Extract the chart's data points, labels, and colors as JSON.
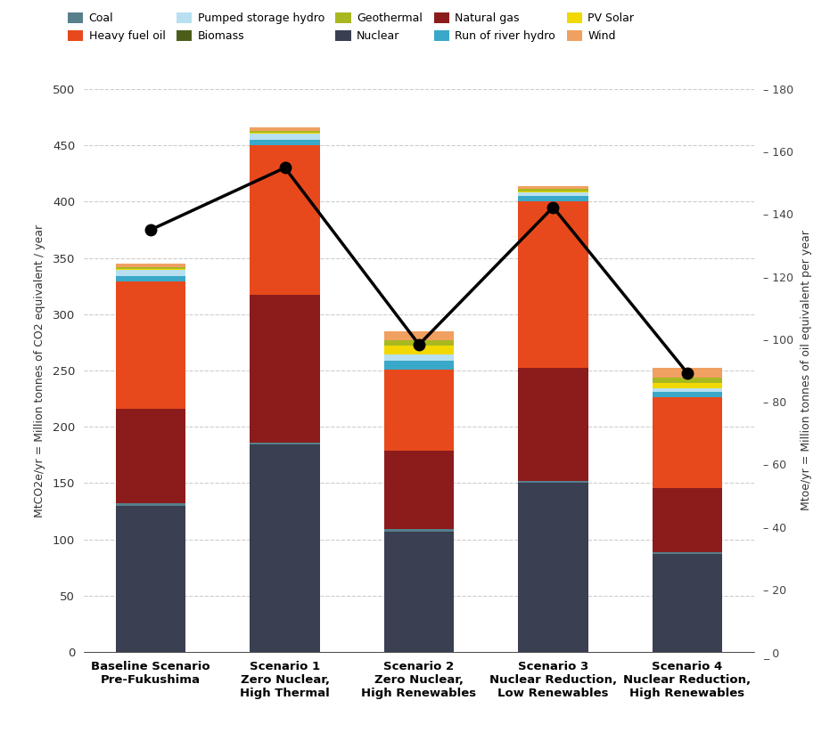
{
  "categories": [
    "Baseline Scenario\nPre-Fukushima",
    "Scenario 1\nZero Nuclear,\nHigh Thermal",
    "Scenario 2\nZero Nuclear,\nHigh Renewables",
    "Scenario 3\nNuclear Reduction,\nLow Renewables",
    "Scenario 4\nNuclear Reduction,\nHigh Renewables"
  ],
  "segment_order": [
    "Nuclear",
    "Coal",
    "Natural gas",
    "Heavy fuel oil",
    "Run of river hydro",
    "Pumped storage hydro",
    "PV Solar",
    "Geothermal",
    "Wind",
    "Biomass"
  ],
  "segments": {
    "Coal": {
      "color": "#577f8c",
      "values": [
        2,
        2,
        2,
        2,
        2
      ]
    },
    "Nuclear": {
      "color": "#3a3f52",
      "values": [
        130,
        184,
        107,
        150,
        87
      ]
    },
    "Heavy fuel oil": {
      "color": "#e8491c",
      "values": [
        113,
        133,
        72,
        148,
        80
      ]
    },
    "Natural gas": {
      "color": "#8c1c1c",
      "values": [
        84,
        131,
        70,
        100,
        57
      ]
    },
    "Pumped storage hydro": {
      "color": "#b8e0f0",
      "values": [
        5,
        5,
        5,
        3,
        3
      ]
    },
    "Run of river hydro": {
      "color": "#3aa8c8",
      "values": [
        5,
        5,
        8,
        5,
        5
      ]
    },
    "Biomass": {
      "color": "#4a5e1a",
      "values": [
        0,
        0,
        0,
        0,
        0
      ]
    },
    "PV Solar": {
      "color": "#f0d800",
      "values": [
        1,
        1,
        8,
        1,
        5
      ]
    },
    "Geothermal": {
      "color": "#a8b820",
      "values": [
        2,
        2,
        5,
        2,
        5
      ]
    },
    "Wind": {
      "color": "#f0a060",
      "values": [
        3,
        3,
        8,
        3,
        8
      ]
    }
  },
  "line_values": [
    375,
    430,
    273,
    395,
    248
  ],
  "ylim_left": [
    0,
    500
  ],
  "ylim_right": [
    0,
    180
  ],
  "ylabel_left": "MtCO2e/yr = Million tonnes of CO2 equivalent / year",
  "ylabel_right": "Mtoe/yr = Million tonnes of oil equivalent per year",
  "yticks_left": [
    0,
    50,
    100,
    150,
    200,
    250,
    300,
    350,
    400,
    450,
    500
  ],
  "yticks_right": [
    0,
    20,
    40,
    60,
    80,
    100,
    120,
    140,
    160,
    180
  ],
  "background_color": "#ffffff",
  "grid_color": "#cccccc"
}
